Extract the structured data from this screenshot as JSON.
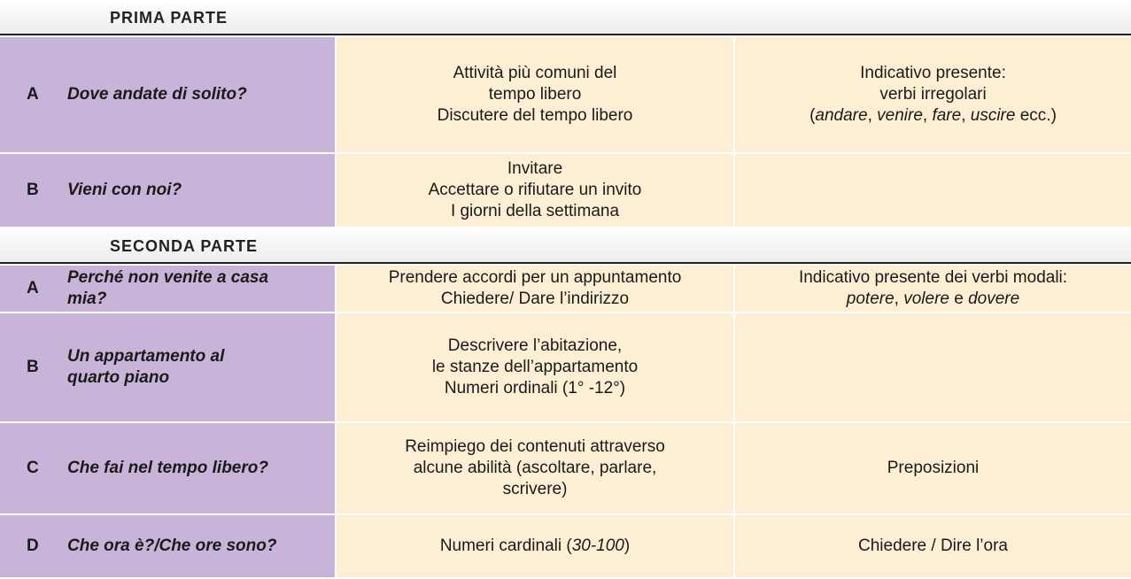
{
  "sections": [
    {
      "title": "PRIMA PARTE",
      "rows": [
        {
          "letter": "A",
          "title": [
            "Dove andate di solito?"
          ],
          "functions": [
            [
              "Attività più comuni del"
            ],
            [
              "tempo libero"
            ],
            [
              "Discutere del tempo libero"
            ]
          ],
          "grammar": [
            [
              "Indicativo presente:"
            ],
            [
              "verbi irregolari"
            ],
            [
              "(",
              {
                "em": "andare"
              },
              ", ",
              {
                "em": "venire"
              },
              ", ",
              {
                "em": "fare"
              },
              ", ",
              {
                "em": "uscire"
              },
              " ecc.)"
            ]
          ]
        },
        {
          "letter": "B",
          "title": [
            "Vieni con noi?"
          ],
          "functions": [
            [
              "Invitare"
            ],
            [
              "Accettare o rifiutare un invito"
            ],
            [
              "I giorni della settimana"
            ]
          ],
          "grammar": []
        }
      ]
    },
    {
      "title": "SECONDA PARTE",
      "rows": [
        {
          "letter": "A",
          "title": [
            "Perché non venite a casa",
            "mia?"
          ],
          "functions": [
            [
              "Prendere accordi per un appuntamento"
            ],
            [
              "Chiedere/ Dare l’indirizzo"
            ]
          ],
          "grammar": [
            [
              "Indicativo presente dei verbi modali:"
            ],
            [
              {
                "em": "potere"
              },
              ", ",
              {
                "em": "volere"
              },
              " e ",
              {
                "em": "dovere"
              }
            ]
          ]
        },
        {
          "letter": "B",
          "title": [
            "Un appartamento al",
            "quarto piano"
          ],
          "functions": [
            [
              "Descrivere l’abitazione,"
            ],
            [
              "le stanze dell’appartamento"
            ],
            [
              "Numeri ordinali (1° -12°)"
            ]
          ],
          "grammar": []
        },
        {
          "letter": "C",
          "title": [
            "Che fai nel tempo libero?"
          ],
          "functions": [
            [
              "Reimpiego dei contenuti attraverso"
            ],
            [
              "alcune abilità (ascoltare, parlare,"
            ],
            [
              "scrivere)"
            ]
          ],
          "grammar": [
            [
              "Preposizioni"
            ]
          ]
        },
        {
          "letter": "D",
          "title": [
            "Che ora è?/Che ore sono?"
          ],
          "functions": [
            [
              "Numeri cardinali (",
              {
                "em": "30-100"
              },
              ")"
            ]
          ],
          "grammar": [
            [
              "Chiedere / Dire l’ora"
            ]
          ]
        }
      ]
    }
  ]
}
